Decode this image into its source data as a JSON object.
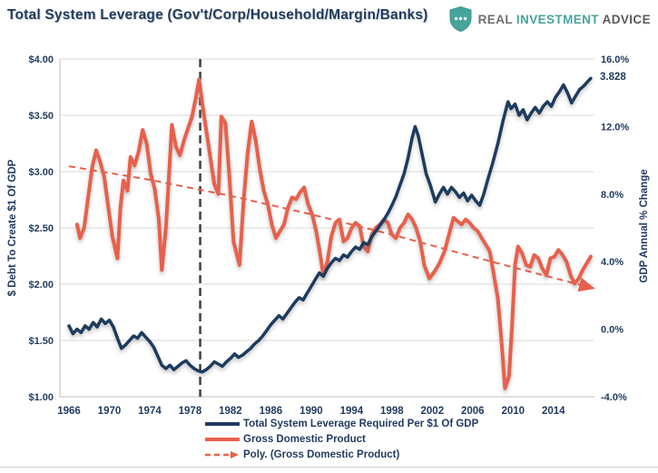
{
  "header": {
    "title": "Total System Leverage (Gov't/Corp/Household/Margin/Banks)",
    "logo": {
      "real": "REAL",
      "investment": "INVESTMENT",
      "advice": "ADVICE",
      "shield_icon_color": "#45A49C"
    }
  },
  "chart_data": {
    "type": "line",
    "title": "Total System Leverage (Gov't/Corp/Household/Margin/Banks)",
    "left_axis": {
      "title": "$ Debt To Create $1 Of GDP",
      "min": 1.0,
      "max": 4.0,
      "ticks": [
        {
          "label": "$4.00",
          "value": 4.0
        },
        {
          "label": "$3.50",
          "value": 3.5
        },
        {
          "label": "$3.00",
          "value": 3.0
        },
        {
          "label": "$2.50",
          "value": 2.5
        },
        {
          "label": "$2.00",
          "value": 2.0
        },
        {
          "label": "$1.50",
          "value": 1.5
        },
        {
          "label": "$1.00",
          "value": 1.0
        }
      ]
    },
    "right_axis": {
      "title": "GDP Annual % Change",
      "min": -4.0,
      "max": 16.0,
      "ticks": [
        {
          "label": "16.0%",
          "value": 16.0
        },
        {
          "label": "12.0%",
          "value": 12.0
        },
        {
          "label": "8.0%",
          "value": 8.0
        },
        {
          "label": "4.0%",
          "value": 4.0
        },
        {
          "label": "0.0%",
          "value": 0.0
        },
        {
          "label": "-4.0%",
          "value": -4.0
        }
      ]
    },
    "x_axis": {
      "tick_years": [
        1966,
        1970,
        1974,
        1978,
        1982,
        1986,
        1990,
        1994,
        1998,
        2002,
        2006,
        2010,
        2014
      ]
    },
    "vline_year": 1979,
    "grid": true,
    "legend_position": "bottom",
    "annotation": {
      "label": "3.828",
      "year": 2017.7,
      "value": 3.828
    },
    "colors": {
      "leverage": "#1F3A5F",
      "gdp": "#E8604C",
      "trend": "#E8604C",
      "grid": "#D9D9D9",
      "axis": "#BFBFBF",
      "vline": "#404040"
    },
    "series": [
      {
        "name": "Total System Leverage Required Per $1 Of GDP",
        "axis": "left",
        "points": [
          [
            1966.0,
            1.63
          ],
          [
            1966.4,
            1.56
          ],
          [
            1966.8,
            1.6
          ],
          [
            1967.2,
            1.57
          ],
          [
            1967.6,
            1.63
          ],
          [
            1968.0,
            1.6
          ],
          [
            1968.4,
            1.66
          ],
          [
            1968.8,
            1.62
          ],
          [
            1969.2,
            1.69
          ],
          [
            1969.6,
            1.65
          ],
          [
            1970.0,
            1.68
          ],
          [
            1970.4,
            1.62
          ],
          [
            1970.8,
            1.52
          ],
          [
            1971.2,
            1.43
          ],
          [
            1971.6,
            1.46
          ],
          [
            1972.0,
            1.5
          ],
          [
            1972.4,
            1.54
          ],
          [
            1972.8,
            1.52
          ],
          [
            1973.2,
            1.57
          ],
          [
            1973.6,
            1.53
          ],
          [
            1974.0,
            1.49
          ],
          [
            1974.4,
            1.44
          ],
          [
            1974.8,
            1.36
          ],
          [
            1975.2,
            1.28
          ],
          [
            1975.6,
            1.25
          ],
          [
            1976.0,
            1.28
          ],
          [
            1976.4,
            1.24
          ],
          [
            1976.8,
            1.27
          ],
          [
            1977.2,
            1.3
          ],
          [
            1977.6,
            1.32
          ],
          [
            1978.0,
            1.28
          ],
          [
            1978.4,
            1.25
          ],
          [
            1978.8,
            1.23
          ],
          [
            1979.2,
            1.22
          ],
          [
            1979.6,
            1.24
          ],
          [
            1980.0,
            1.27
          ],
          [
            1980.4,
            1.31
          ],
          [
            1980.8,
            1.29
          ],
          [
            1981.2,
            1.27
          ],
          [
            1981.6,
            1.31
          ],
          [
            1982.0,
            1.34
          ],
          [
            1982.4,
            1.38
          ],
          [
            1982.8,
            1.35
          ],
          [
            1983.2,
            1.37
          ],
          [
            1983.6,
            1.4
          ],
          [
            1984.0,
            1.43
          ],
          [
            1984.4,
            1.47
          ],
          [
            1984.8,
            1.5
          ],
          [
            1985.2,
            1.54
          ],
          [
            1985.6,
            1.59
          ],
          [
            1986.0,
            1.64
          ],
          [
            1986.4,
            1.68
          ],
          [
            1986.8,
            1.72
          ],
          [
            1987.2,
            1.69
          ],
          [
            1987.6,
            1.74
          ],
          [
            1988.0,
            1.79
          ],
          [
            1988.4,
            1.84
          ],
          [
            1988.8,
            1.88
          ],
          [
            1989.2,
            1.86
          ],
          [
            1989.6,
            1.92
          ],
          [
            1990.0,
            1.98
          ],
          [
            1990.4,
            2.04
          ],
          [
            1990.8,
            2.1
          ],
          [
            1991.2,
            2.07
          ],
          [
            1991.6,
            2.14
          ],
          [
            1992.0,
            2.19
          ],
          [
            1992.4,
            2.23
          ],
          [
            1992.8,
            2.21
          ],
          [
            1993.2,
            2.26
          ],
          [
            1993.6,
            2.24
          ],
          [
            1994.0,
            2.29
          ],
          [
            1994.4,
            2.33
          ],
          [
            1994.8,
            2.31
          ],
          [
            1995.2,
            2.37
          ],
          [
            1995.6,
            2.35
          ],
          [
            1996.0,
            2.42
          ],
          [
            1996.4,
            2.47
          ],
          [
            1996.8,
            2.52
          ],
          [
            1997.2,
            2.57
          ],
          [
            1997.6,
            2.63
          ],
          [
            1998.0,
            2.7
          ],
          [
            1998.4,
            2.78
          ],
          [
            1998.8,
            2.88
          ],
          [
            1999.2,
            2.98
          ],
          [
            1999.6,
            3.12
          ],
          [
            2000.0,
            3.3
          ],
          [
            2000.3,
            3.4
          ],
          [
            2000.6,
            3.32
          ],
          [
            2001.0,
            3.15
          ],
          [
            2001.4,
            2.98
          ],
          [
            2001.8,
            2.88
          ],
          [
            2002.3,
            2.73
          ],
          [
            2002.7,
            2.8
          ],
          [
            2003.1,
            2.86
          ],
          [
            2003.5,
            2.8
          ],
          [
            2003.9,
            2.86
          ],
          [
            2004.3,
            2.82
          ],
          [
            2004.7,
            2.77
          ],
          [
            2005.1,
            2.81
          ],
          [
            2005.5,
            2.74
          ],
          [
            2005.9,
            2.79
          ],
          [
            2006.3,
            2.74
          ],
          [
            2006.7,
            2.7
          ],
          [
            2007.1,
            2.8
          ],
          [
            2007.5,
            2.93
          ],
          [
            2008.0,
            3.08
          ],
          [
            2008.5,
            3.25
          ],
          [
            2009.0,
            3.45
          ],
          [
            2009.5,
            3.62
          ],
          [
            2009.8,
            3.56
          ],
          [
            2010.2,
            3.6
          ],
          [
            2010.6,
            3.5
          ],
          [
            2011.0,
            3.55
          ],
          [
            2011.4,
            3.46
          ],
          [
            2011.8,
            3.52
          ],
          [
            2012.2,
            3.57
          ],
          [
            2012.6,
            3.52
          ],
          [
            2013.0,
            3.58
          ],
          [
            2013.4,
            3.62
          ],
          [
            2013.8,
            3.58
          ],
          [
            2014.2,
            3.66
          ],
          [
            2014.6,
            3.71
          ],
          [
            2015.0,
            3.77
          ],
          [
            2015.4,
            3.7
          ],
          [
            2015.8,
            3.61
          ],
          [
            2016.2,
            3.67
          ],
          [
            2016.6,
            3.73
          ],
          [
            2017.0,
            3.76
          ],
          [
            2017.4,
            3.8
          ],
          [
            2017.7,
            3.828
          ]
        ]
      },
      {
        "name": "Gross Domestic Product",
        "axis": "right",
        "points": [
          [
            1966.8,
            6.2
          ],
          [
            1967.1,
            5.4
          ],
          [
            1967.5,
            6.0
          ],
          [
            1967.9,
            7.8
          ],
          [
            1968.3,
            9.6
          ],
          [
            1968.7,
            10.6
          ],
          [
            1969.1,
            9.9
          ],
          [
            1969.5,
            9.0
          ],
          [
            1969.9,
            7.2
          ],
          [
            1970.3,
            5.5
          ],
          [
            1970.8,
            4.2
          ],
          [
            1971.1,
            7.2
          ],
          [
            1971.4,
            8.8
          ],
          [
            1971.8,
            8.2
          ],
          [
            1972.1,
            10.2
          ],
          [
            1972.5,
            9.7
          ],
          [
            1972.9,
            10.5
          ],
          [
            1973.3,
            11.8
          ],
          [
            1973.7,
            11.0
          ],
          [
            1974.1,
            9.2
          ],
          [
            1974.5,
            8.3
          ],
          [
            1974.9,
            6.5
          ],
          [
            1975.2,
            3.5
          ],
          [
            1975.6,
            6.0
          ],
          [
            1975.9,
            9.0
          ],
          [
            1976.2,
            12.1
          ],
          [
            1976.6,
            10.8
          ],
          [
            1977.0,
            10.3
          ],
          [
            1977.4,
            11.2
          ],
          [
            1977.8,
            11.9
          ],
          [
            1978.2,
            12.6
          ],
          [
            1978.6,
            13.8
          ],
          [
            1978.9,
            14.8
          ],
          [
            1979.2,
            13.4
          ],
          [
            1979.6,
            11.8
          ],
          [
            1980.0,
            10.2
          ],
          [
            1980.4,
            8.6
          ],
          [
            1980.8,
            8.0
          ],
          [
            1981.1,
            12.6
          ],
          [
            1981.5,
            12.2
          ],
          [
            1981.9,
            9.0
          ],
          [
            1982.3,
            5.2
          ],
          [
            1982.9,
            3.8
          ],
          [
            1983.3,
            7.6
          ],
          [
            1983.7,
            10.4
          ],
          [
            1984.1,
            12.3
          ],
          [
            1984.5,
            11.2
          ],
          [
            1984.9,
            9.5
          ],
          [
            1985.3,
            8.2
          ],
          [
            1985.7,
            7.4
          ],
          [
            1986.1,
            6.2
          ],
          [
            1986.5,
            5.4
          ],
          [
            1986.9,
            5.8
          ],
          [
            1987.3,
            6.2
          ],
          [
            1987.7,
            7.2
          ],
          [
            1988.1,
            7.8
          ],
          [
            1988.5,
            7.7
          ],
          [
            1988.9,
            8.1
          ],
          [
            1989.3,
            8.4
          ],
          [
            1989.7,
            7.4
          ],
          [
            1990.1,
            6.8
          ],
          [
            1990.5,
            5.8
          ],
          [
            1990.9,
            4.4
          ],
          [
            1991.2,
            3.2
          ],
          [
            1991.6,
            4.0
          ],
          [
            1992.0,
            5.5
          ],
          [
            1992.4,
            6.3
          ],
          [
            1992.8,
            6.5
          ],
          [
            1993.2,
            5.2
          ],
          [
            1993.6,
            5.4
          ],
          [
            1994.0,
            6.0
          ],
          [
            1994.4,
            6.3
          ],
          [
            1994.8,
            6.1
          ],
          [
            1995.2,
            4.9
          ],
          [
            1995.6,
            4.6
          ],
          [
            1996.0,
            5.6
          ],
          [
            1996.4,
            6.0
          ],
          [
            1996.8,
            6.2
          ],
          [
            1997.2,
            6.5
          ],
          [
            1997.6,
            6.3
          ],
          [
            1998.0,
            5.6
          ],
          [
            1998.4,
            5.4
          ],
          [
            1998.8,
            6.0
          ],
          [
            1999.2,
            6.3
          ],
          [
            1999.6,
            6.8
          ],
          [
            2000.0,
            6.5
          ],
          [
            2000.4,
            6.0
          ],
          [
            2000.8,
            5.2
          ],
          [
            2001.2,
            3.8
          ],
          [
            2001.7,
            3.0
          ],
          [
            2002.2,
            3.4
          ],
          [
            2002.7,
            3.9
          ],
          [
            2003.2,
            4.6
          ],
          [
            2003.7,
            5.7
          ],
          [
            2004.1,
            6.6
          ],
          [
            2004.5,
            6.4
          ],
          [
            2004.9,
            6.2
          ],
          [
            2005.3,
            6.5
          ],
          [
            2005.7,
            6.3
          ],
          [
            2006.1,
            6.0
          ],
          [
            2006.5,
            5.8
          ],
          [
            2006.9,
            5.4
          ],
          [
            2007.3,
            5.0
          ],
          [
            2007.7,
            4.6
          ],
          [
            2008.1,
            3.2
          ],
          [
            2008.5,
            1.8
          ],
          [
            2008.9,
            -1.0
          ],
          [
            2009.2,
            -3.5
          ],
          [
            2009.6,
            -2.8
          ],
          [
            2009.9,
            0.2
          ],
          [
            2010.2,
            3.8
          ],
          [
            2010.5,
            4.9
          ],
          [
            2010.9,
            4.5
          ],
          [
            2011.3,
            3.8
          ],
          [
            2011.7,
            3.7
          ],
          [
            2012.1,
            4.4
          ],
          [
            2012.5,
            4.2
          ],
          [
            2012.9,
            3.6
          ],
          [
            2013.3,
            3.2
          ],
          [
            2013.7,
            4.2
          ],
          [
            2014.1,
            4.3
          ],
          [
            2014.5,
            4.7
          ],
          [
            2014.9,
            4.4
          ],
          [
            2015.3,
            4.0
          ],
          [
            2015.7,
            3.2
          ],
          [
            2016.1,
            2.7
          ],
          [
            2016.5,
            3.0
          ],
          [
            2016.9,
            3.5
          ],
          [
            2017.3,
            3.9
          ],
          [
            2017.7,
            4.3
          ]
        ]
      },
      {
        "name": "Poly. (Gross Domestic Product)",
        "axis": "right",
        "style": "dashed-arrow",
        "points": [
          [
            1966.0,
            9.65
          ],
          [
            1974.0,
            8.85
          ],
          [
            1982.0,
            7.9
          ],
          [
            1990.0,
            6.8
          ],
          [
            1998.0,
            5.6
          ],
          [
            2006.0,
            4.3
          ],
          [
            2012.0,
            3.35
          ],
          [
            2017.8,
            2.45
          ]
        ]
      }
    ],
    "legend": [
      {
        "label": "Total System Leverage Required Per $1 Of GDP",
        "swatch": "solid-navy"
      },
      {
        "label": "Gross Domestic Product",
        "swatch": "solid-red"
      },
      {
        "label": "Poly. (Gross Domestic Product)",
        "swatch": "dashed-red-arrow"
      }
    ]
  }
}
